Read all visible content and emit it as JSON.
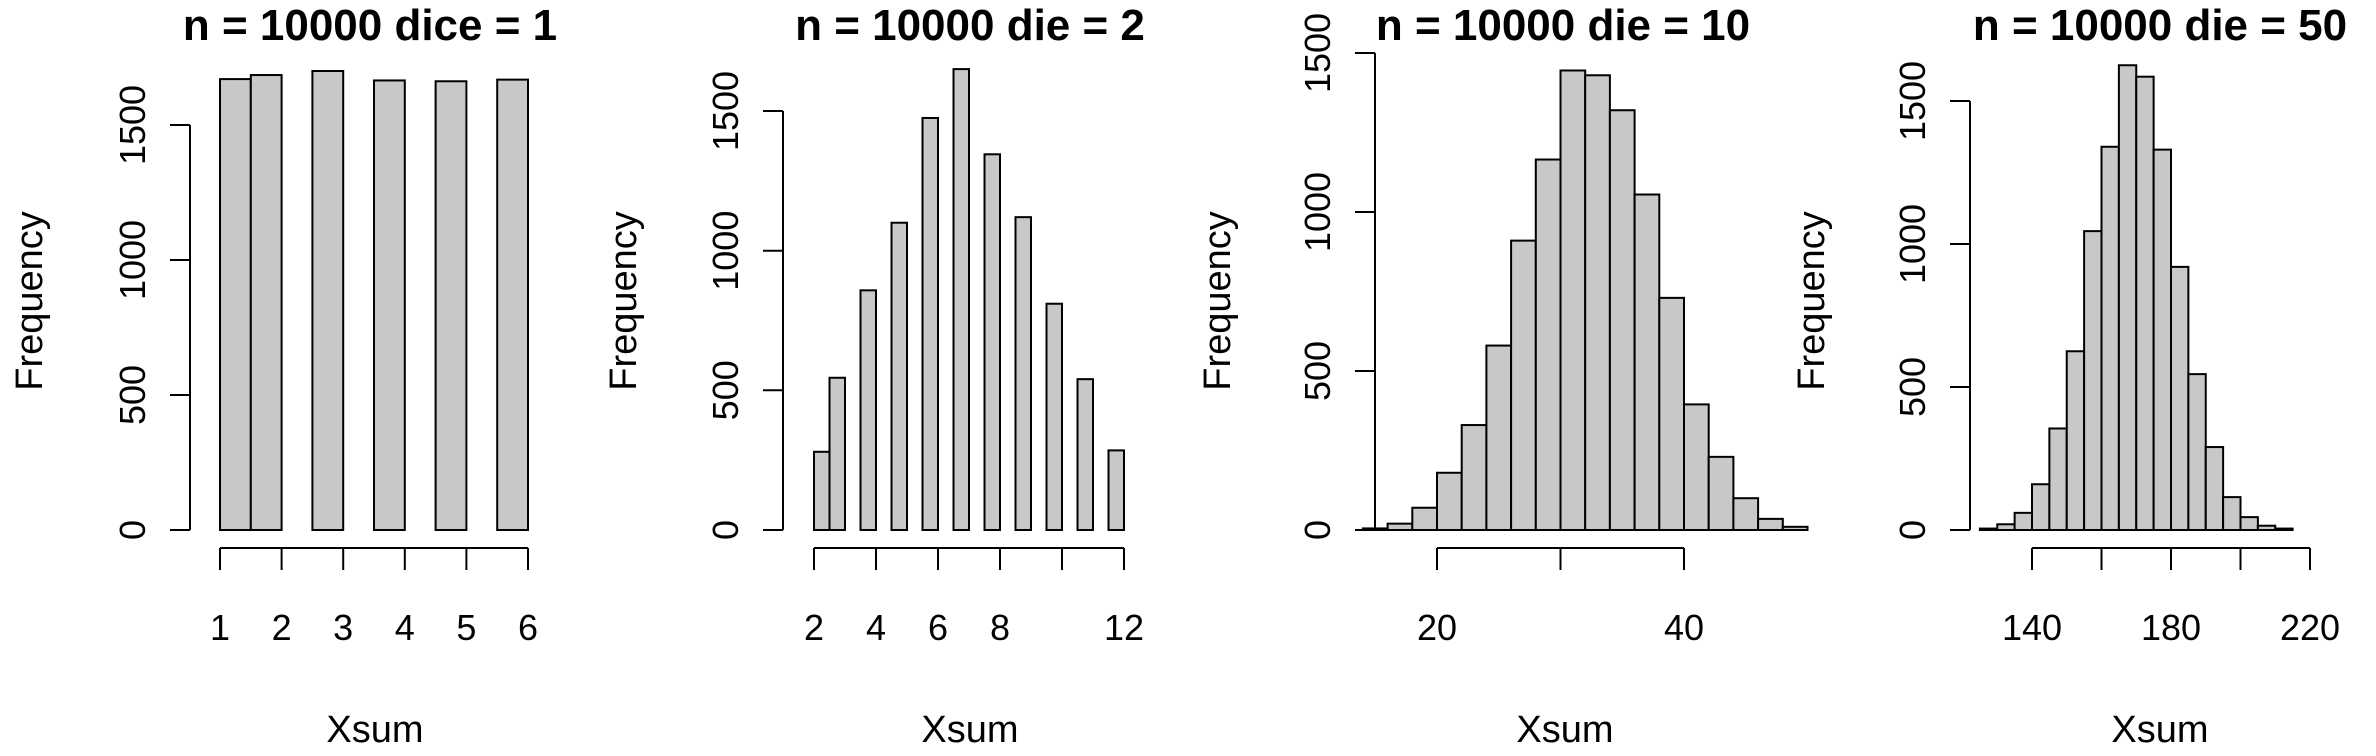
{
  "chart_data": [
    {
      "type": "bar",
      "title": "n = 10000 dice = 1",
      "xlabel": "Xsum",
      "ylabel": "Frequency",
      "xlim": [
        1,
        6
      ],
      "ylim": [
        0,
        1750
      ],
      "x_ticks": [
        "1",
        "2",
        "3",
        "4",
        "5",
        "6"
      ],
      "y_ticks": [
        "0",
        "500",
        "1000",
        "1500"
      ],
      "bins": [
        {
          "from": 1.0,
          "to": 1.5,
          "count": 1670
        },
        {
          "from": 1.5,
          "to": 2.0,
          "count": 1685
        },
        {
          "from": 2.5,
          "to": 3.0,
          "count": 1700
        },
        {
          "from": 3.5,
          "to": 4.0,
          "count": 1665
        },
        {
          "from": 4.5,
          "to": 5.0,
          "count": 1662
        },
        {
          "from": 5.5,
          "to": 6.0,
          "count": 1668
        }
      ]
    },
    {
      "type": "bar",
      "title": "n = 10000 die = 2",
      "xlabel": "Xsum",
      "ylabel": "Frequency",
      "xlim": [
        2,
        12
      ],
      "ylim": [
        0,
        1700
      ],
      "x_ticks": [
        "2",
        "4",
        "6",
        "8",
        "12"
      ],
      "y_ticks": [
        "0",
        "500",
        "1000",
        "1500"
      ],
      "bins": [
        {
          "from": 2.0,
          "to": 2.5,
          "count": 280
        },
        {
          "from": 2.5,
          "to": 3.0,
          "count": 545
        },
        {
          "from": 3.5,
          "to": 4.0,
          "count": 858
        },
        {
          "from": 4.5,
          "to": 5.0,
          "count": 1100
        },
        {
          "from": 5.5,
          "to": 6.0,
          "count": 1475
        },
        {
          "from": 6.5,
          "to": 7.0,
          "count": 1650
        },
        {
          "from": 7.5,
          "to": 8.0,
          "count": 1345
        },
        {
          "from": 8.5,
          "to": 9.0,
          "count": 1120
        },
        {
          "from": 9.5,
          "to": 10.0,
          "count": 810
        },
        {
          "from": 10.5,
          "to": 11.0,
          "count": 540
        },
        {
          "from": 11.5,
          "to": 12.0,
          "count": 285
        }
      ]
    },
    {
      "type": "bar",
      "title": "n = 10000 die = 10",
      "xlabel": "Xsum",
      "ylabel": "Frequency",
      "xlim": [
        20,
        40
      ],
      "ylim": [
        0,
        1500
      ],
      "x_ticks": [
        "20",
        "40"
      ],
      "y_ticks": [
        "0",
        "500",
        "1000",
        "1500"
      ],
      "bins": [
        {
          "from": 14,
          "to": 16,
          "count": 5
        },
        {
          "from": 16,
          "to": 18,
          "count": 20
        },
        {
          "from": 18,
          "to": 20,
          "count": 70
        },
        {
          "from": 20,
          "to": 22,
          "count": 180
        },
        {
          "from": 22,
          "to": 24,
          "count": 330
        },
        {
          "from": 24,
          "to": 26,
          "count": 580
        },
        {
          "from": 26,
          "to": 28,
          "count": 910
        },
        {
          "from": 28,
          "to": 30,
          "count": 1165
        },
        {
          "from": 30,
          "to": 32,
          "count": 1445
        },
        {
          "from": 32,
          "to": 34,
          "count": 1430
        },
        {
          "from": 34,
          "to": 36,
          "count": 1320
        },
        {
          "from": 36,
          "to": 38,
          "count": 1055
        },
        {
          "from": 38,
          "to": 40,
          "count": 730
        },
        {
          "from": 40,
          "to": 42,
          "count": 395
        },
        {
          "from": 42,
          "to": 44,
          "count": 230
        },
        {
          "from": 44,
          "to": 46,
          "count": 100
        },
        {
          "from": 46,
          "to": 48,
          "count": 35
        },
        {
          "from": 48,
          "to": 50,
          "count": 10
        }
      ]
    },
    {
      "type": "bar",
      "title": "n = 10000 die = 50",
      "xlabel": "Xsum",
      "ylabel": "Frequency",
      "xlim": [
        140,
        220
      ],
      "ylim": [
        0,
        1650
      ],
      "x_ticks": [
        "140",
        "180",
        "220"
      ],
      "y_ticks": [
        "0",
        "500",
        "1000",
        "1500"
      ],
      "bins": [
        {
          "from": 125,
          "to": 130,
          "count": 5
        },
        {
          "from": 130,
          "to": 135,
          "count": 20
        },
        {
          "from": 135,
          "to": 140,
          "count": 60
        },
        {
          "from": 140,
          "to": 145,
          "count": 160
        },
        {
          "from": 145,
          "to": 150,
          "count": 355
        },
        {
          "from": 150,
          "to": 155,
          "count": 625
        },
        {
          "from": 155,
          "to": 160,
          "count": 1045
        },
        {
          "from": 160,
          "to": 165,
          "count": 1340
        },
        {
          "from": 165,
          "to": 170,
          "count": 1625
        },
        {
          "from": 170,
          "to": 175,
          "count": 1585
        },
        {
          "from": 175,
          "to": 180,
          "count": 1330
        },
        {
          "from": 180,
          "to": 185,
          "count": 920
        },
        {
          "from": 185,
          "to": 190,
          "count": 545
        },
        {
          "from": 190,
          "to": 195,
          "count": 290
        },
        {
          "from": 195,
          "to": 200,
          "count": 115
        },
        {
          "from": 200,
          "to": 205,
          "count": 45
        },
        {
          "from": 205,
          "to": 210,
          "count": 15
        },
        {
          "from": 210,
          "to": 215,
          "count": 5
        }
      ]
    }
  ]
}
